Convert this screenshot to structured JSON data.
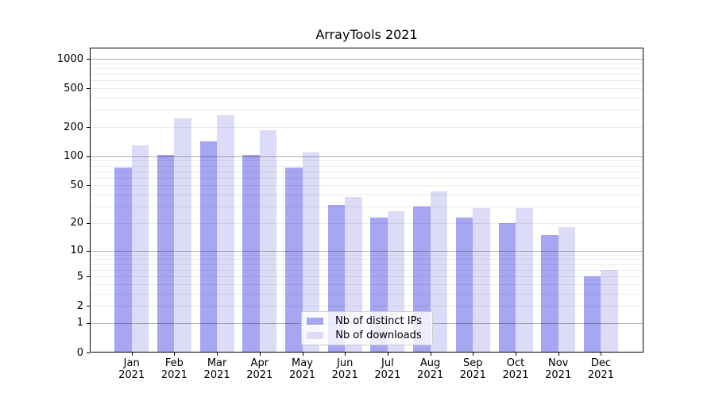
{
  "chart_data": {
    "type": "bar",
    "title": "ArrayTools 2021",
    "y_scale": "log10(1+v)",
    "ylim": [
      0,
      1300
    ],
    "y_ticks": [
      1000,
      500,
      200,
      100,
      50,
      20,
      10,
      5,
      2,
      1,
      0
    ],
    "grid": true,
    "categories": [
      {
        "month": "Jan",
        "year": "2021"
      },
      {
        "month": "Feb",
        "year": "2021"
      },
      {
        "month": "Mar",
        "year": "2021"
      },
      {
        "month": "Apr",
        "year": "2021"
      },
      {
        "month": "May",
        "year": "2021"
      },
      {
        "month": "Jun",
        "year": "2021"
      },
      {
        "month": "Jul",
        "year": "2021"
      },
      {
        "month": "Aug",
        "year": "2021"
      },
      {
        "month": "Sep",
        "year": "2021"
      },
      {
        "month": "Oct",
        "year": "2021"
      },
      {
        "month": "Nov",
        "year": "2021"
      },
      {
        "month": "Dec",
        "year": "2021"
      }
    ],
    "series": [
      {
        "name": "Nb of distinct IPs",
        "color": "#a6a6f2",
        "values": [
          77,
          104,
          142,
          104,
          76,
          31,
          23,
          30,
          23,
          20,
          15,
          5
        ]
      },
      {
        "name": "Nb of downloads",
        "color": "#dcdcf8",
        "values": [
          130,
          247,
          265,
          185,
          109,
          38,
          27,
          43,
          29,
          29,
          18,
          6
        ]
      }
    ],
    "legend_position": "inside-bottom-center"
  },
  "colors": {
    "major_grid": "rgba(0,0,0,0.30)",
    "minor_grid": "rgba(0,0,0,0.075)",
    "spine": "#000000",
    "text": "#000000"
  }
}
